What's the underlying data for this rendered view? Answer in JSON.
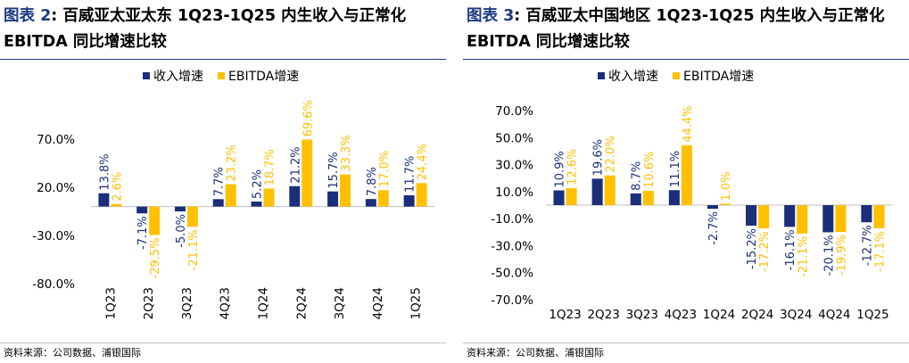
{
  "panels": [
    {
      "title_label": "图表",
      "title_num": "2",
      "title_rest": ": 百威亚太亚太东 1Q23-1Q25 内生收入与正常化 EBITDA 同比增速比较",
      "source": "资料来源：公司数据、浦银国际"
    },
    {
      "title_label": "图表",
      "title_num": "3",
      "title_rest": ": 百威亚太中国地区 1Q23-1Q25 内生收入与正常化 EBITDA 同比增速比较",
      "source": "资料来源：公司数据、浦银国际"
    }
  ],
  "colors": {
    "revenue": "#1b2e7a",
    "ebitda": "#ffc000",
    "title_blue": "#1f3a80"
  },
  "chart_data": [
    {
      "type": "bar",
      "categories": [
        "1Q23",
        "2Q23",
        "3Q23",
        "4Q23",
        "1Q24",
        "2Q24",
        "3Q24",
        "4Q24",
        "1Q25"
      ],
      "series": [
        {
          "name": "收入增速",
          "values": [
            13.8,
            -7.1,
            -5.0,
            7.7,
            5.2,
            21.2,
            15.7,
            7.8,
            11.7
          ],
          "labels": [
            "13.8%",
            "-7.1%",
            "-5.0%",
            "7.7%",
            "5.2%",
            "21.2%",
            "15.7%",
            "7.8%",
            "11.7%"
          ]
        },
        {
          "name": "EBITDA增速",
          "values": [
            2.6,
            -29.5,
            -21.1,
            23.2,
            18.7,
            69.6,
            33.3,
            17.0,
            24.4
          ],
          "labels": [
            "2.6%",
            "-29.5%",
            "-21.1%",
            "23.2%",
            "18.7%",
            "69.6%",
            "33.3%",
            "17.0%",
            "24.4%"
          ]
        }
      ],
      "yticks": [
        "70.0%",
        "20.0%",
        "-30.0%",
        "-80.0%"
      ],
      "ytick_values": [
        70,
        20,
        -30,
        -80
      ],
      "ylim": [
        -80,
        70
      ],
      "legend_position": "top-left",
      "category_label_orientation": "rotated",
      "grid": false
    },
    {
      "type": "bar",
      "categories": [
        "1Q23",
        "2Q23",
        "3Q23",
        "4Q23",
        "1Q24",
        "2Q24",
        "3Q24",
        "4Q24",
        "1Q25"
      ],
      "series": [
        {
          "name": "收入增速",
          "values": [
            10.9,
            19.6,
            8.7,
            11.1,
            -2.7,
            -15.2,
            -16.1,
            -20.1,
            -12.7
          ],
          "labels": [
            "10.9%",
            "19.6%",
            "8.7%",
            "11.1%",
            "-2.7%",
            "-15.2%",
            "-16.1%",
            "-20.1%",
            "-12.7%"
          ]
        },
        {
          "name": "EBITDA增速",
          "values": [
            12.6,
            22.0,
            10.6,
            44.4,
            1.0,
            -17.2,
            -21.1,
            -19.9,
            -17.1
          ],
          "labels": [
            "12.6%",
            "22.0%",
            "10.6%",
            "44.4%",
            "1.0%",
            "-17.2%",
            "-21.1%",
            "-19.9%",
            "-17.1%"
          ]
        }
      ],
      "yticks": [
        "70.0%",
        "50.0%",
        "30.0%",
        "10.0%",
        "-10.0%",
        "-30.0%",
        "-50.0%",
        "-70.0%"
      ],
      "ytick_values": [
        70,
        50,
        30,
        10,
        -10,
        -30,
        -50,
        -70
      ],
      "ylim": [
        -70,
        70
      ],
      "legend_position": "top-left",
      "category_label_orientation": "horizontal",
      "grid": false
    }
  ]
}
